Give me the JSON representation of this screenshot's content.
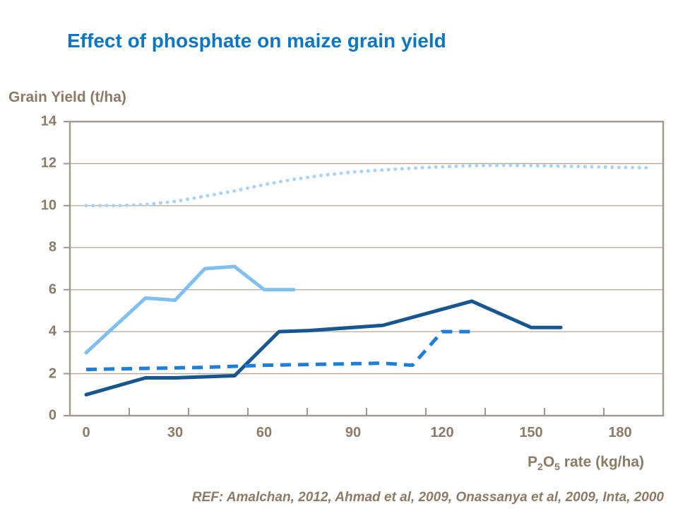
{
  "title": "Effect of phosphate on maize grain yield",
  "y_axis_label": "Grain Yield (t/ha)",
  "x_axis_label": {
    "p": "P",
    "s1": "2",
    "o": "O",
    "s2": "5",
    "rest": " rate (kg/ha)"
  },
  "ref_line": "REF: Amalchan, 2012, Ahmad et al, 2009, Onassanya et al, 2009, Inta, 2000",
  "colors": {
    "title_blue": "#0b76c4",
    "axis_text": "#8c7b66",
    "axis_frame": "#a3968a",
    "gridline": "#b3a797",
    "series_dotted_light": "#abd3f2",
    "series_solid_light": "#7fc0f0",
    "series_solid_dark": "#17568f",
    "series_dashed_medium": "#1e7ed8"
  },
  "chart_data": {
    "type": "line",
    "title": "Effect of phosphate on maize grain yield",
    "xlabel": "P2O5 rate (kg/ha)",
    "ylabel": "Grain Yield (t/ha)",
    "xlim": [
      0,
      195
    ],
    "ylim": [
      0,
      14
    ],
    "x_ticks": [
      0,
      30,
      60,
      90,
      120,
      150,
      180
    ],
    "y_ticks": [
      0,
      2,
      4,
      6,
      8,
      10,
      12,
      14
    ],
    "grid": "horizontal",
    "legend": "none",
    "series": [
      {
        "name": "potential-yield-dotted-light-blue",
        "style": "dotted",
        "color": "#abd3f2",
        "x": [
          0,
          10,
          20,
          30,
          40,
          50,
          60,
          70,
          80,
          90,
          100,
          110,
          120,
          130,
          140,
          150,
          160,
          170,
          180,
          190
        ],
        "y": [
          10,
          10,
          10.05,
          10.2,
          10.45,
          10.7,
          11.0,
          11.25,
          11.45,
          11.6,
          11.7,
          11.78,
          11.85,
          11.9,
          11.92,
          11.9,
          11.88,
          11.85,
          11.82,
          11.8
        ]
      },
      {
        "name": "trial-solid-light-blue",
        "style": "solid",
        "color": "#7fc0f0",
        "x": [
          0,
          20,
          30,
          40,
          50,
          60,
          70
        ],
        "y": [
          3,
          5.6,
          5.5,
          7,
          7.1,
          6,
          6
        ]
      },
      {
        "name": "trial-solid-dark-blue",
        "style": "solid",
        "color": "#17568f",
        "x": [
          0,
          20,
          30,
          50,
          65,
          75,
          100,
          130,
          150,
          160
        ],
        "y": [
          1,
          1.8,
          1.8,
          1.9,
          4,
          4.05,
          4.3,
          5.45,
          4.2,
          4.2
        ]
      },
      {
        "name": "trial-dashed-medium-blue",
        "style": "dashed",
        "color": "#1e7ed8",
        "x": [
          0,
          20,
          40,
          60,
          80,
          100,
          110,
          120,
          130
        ],
        "y": [
          2.2,
          2.25,
          2.3,
          2.4,
          2.45,
          2.5,
          2.4,
          4,
          4
        ]
      }
    ]
  }
}
